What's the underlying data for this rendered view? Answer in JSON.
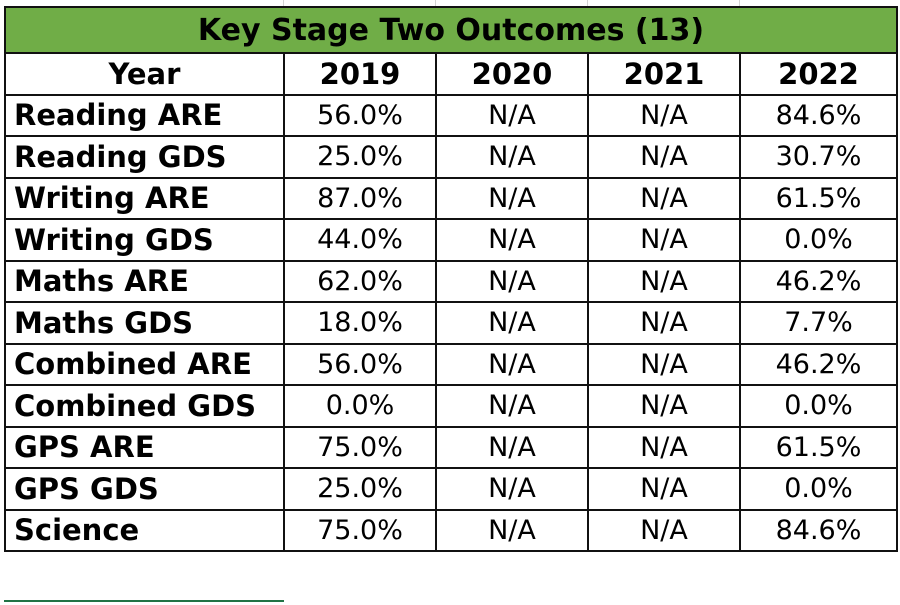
{
  "title": "Key Stage Two Outcomes (13)",
  "header": {
    "label": "Year",
    "years": [
      "2019",
      "2020",
      "2021",
      "2022"
    ]
  },
  "rows": [
    {
      "label": "Reading ARE",
      "values": [
        "56.0%",
        "N/A",
        "N/A",
        "84.6%"
      ]
    },
    {
      "label": "Reading GDS",
      "values": [
        "25.0%",
        "N/A",
        "N/A",
        "30.7%"
      ]
    },
    {
      "label": "Writing ARE",
      "values": [
        "87.0%",
        "N/A",
        "N/A",
        "61.5%"
      ]
    },
    {
      "label": "Writing GDS",
      "values": [
        "44.0%",
        "N/A",
        "N/A",
        "0.0%"
      ]
    },
    {
      "label": "Maths ARE",
      "values": [
        "62.0%",
        "N/A",
        "N/A",
        "46.2%"
      ]
    },
    {
      "label": "Maths GDS",
      "values": [
        "18.0%",
        "N/A",
        "N/A",
        "7.7%"
      ]
    },
    {
      "label": "Combined ARE",
      "values": [
        "56.0%",
        "N/A",
        "N/A",
        "46.2%"
      ]
    },
    {
      "label": "Combined GDS",
      "values": [
        "0.0%",
        "N/A",
        "N/A",
        "0.0%"
      ]
    },
    {
      "label": "GPS ARE",
      "values": [
        "75.0%",
        "N/A",
        "N/A",
        "61.5%"
      ]
    },
    {
      "label": "GPS GDS",
      "values": [
        "25.0%",
        "N/A",
        "N/A",
        "0.0%"
      ]
    },
    {
      "label": "Science",
      "values": [
        "75.0%",
        "N/A",
        "N/A",
        "84.6%"
      ]
    }
  ],
  "colors": {
    "title_fill": "#70ad47",
    "border": "#111111",
    "selection": "#217346"
  }
}
